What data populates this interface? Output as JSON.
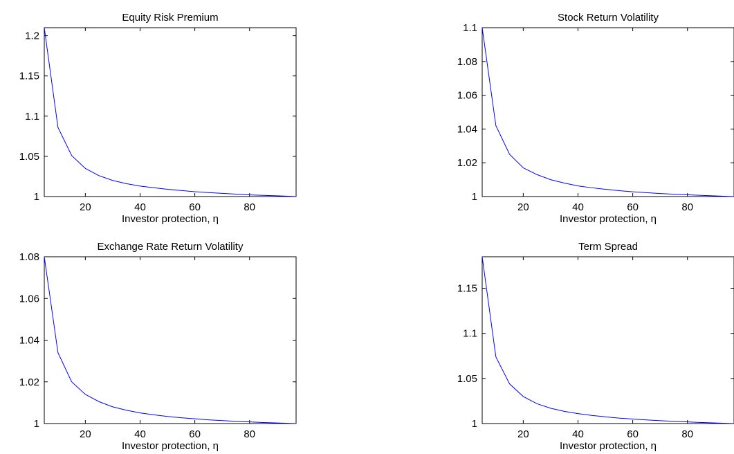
{
  "figure": {
    "background": "#ffffff",
    "line_color": "#0000ff",
    "axis_color": "#000000"
  },
  "chart_data": [
    {
      "type": "line",
      "title": "Equity Risk Premium",
      "xlabel": "Investor protection, η",
      "ylabel": "",
      "xlim": [
        5,
        97
      ],
      "ylim": [
        1,
        1.21
      ],
      "xticks": [
        20,
        40,
        60,
        80
      ],
      "yticks": [
        1,
        1.05,
        1.1,
        1.15,
        1.2
      ],
      "ytick_labels": [
        "1",
        "1.05",
        "1.1",
        "1.15",
        "1.2"
      ],
      "grid": false,
      "series": [
        {
          "x": [
            5,
            10,
            15,
            20,
            25,
            30,
            35,
            40,
            45,
            50,
            55,
            60,
            65,
            70,
            75,
            80,
            85,
            90,
            95,
            97
          ],
          "y": [
            1.21,
            1.086,
            1.051,
            1.035,
            1.026,
            1.02,
            1.016,
            1.013,
            1.011,
            1.009,
            1.0075,
            1.006,
            1.005,
            1.004,
            1.003,
            1.002,
            1.0015,
            1.001,
            1.0003,
            1.0
          ]
        }
      ]
    },
    {
      "type": "line",
      "title": "Stock Return Volatility",
      "xlabel": "Investor protection, η",
      "ylabel": "",
      "xlim": [
        5,
        97
      ],
      "ylim": [
        1,
        1.1
      ],
      "xticks": [
        20,
        40,
        60,
        80
      ],
      "yticks": [
        1,
        1.02,
        1.04,
        1.06,
        1.08,
        1.1
      ],
      "ytick_labels": [
        "1",
        "1.02",
        "1.04",
        "1.06",
        "1.08",
        "1.1"
      ],
      "grid": false,
      "series": [
        {
          "x": [
            5,
            10,
            15,
            20,
            25,
            30,
            35,
            40,
            45,
            50,
            55,
            60,
            65,
            70,
            75,
            80,
            85,
            90,
            95,
            97
          ],
          "y": [
            1.1,
            1.042,
            1.025,
            1.017,
            1.013,
            1.01,
            1.008,
            1.0063,
            1.0052,
            1.0043,
            1.0035,
            1.0028,
            1.0023,
            1.0018,
            1.0014,
            1.001,
            1.0007,
            1.0004,
            1.0001,
            1.0
          ]
        }
      ]
    },
    {
      "type": "line",
      "title": "Exchange Rate Return Volatility",
      "xlabel": "Investor protection, η",
      "ylabel": "",
      "xlim": [
        5,
        97
      ],
      "ylim": [
        1,
        1.08
      ],
      "xticks": [
        20,
        40,
        60,
        80
      ],
      "yticks": [
        1,
        1.02,
        1.04,
        1.06,
        1.08
      ],
      "ytick_labels": [
        "1",
        "1.02",
        "1.04",
        "1.06",
        "1.08"
      ],
      "grid": false,
      "series": [
        {
          "x": [
            5,
            10,
            15,
            20,
            25,
            30,
            35,
            40,
            45,
            50,
            55,
            60,
            65,
            70,
            75,
            80,
            85,
            90,
            95,
            97
          ],
          "y": [
            1.08,
            1.034,
            1.02,
            1.014,
            1.0105,
            1.008,
            1.0064,
            1.0051,
            1.0042,
            1.0034,
            1.0028,
            1.0023,
            1.0018,
            1.0014,
            1.0011,
            1.0008,
            1.0005,
            1.0003,
            1.0001,
            1.0
          ]
        }
      ]
    },
    {
      "type": "line",
      "title": "Term Spread",
      "xlabel": "Investor protection, η",
      "ylabel": "",
      "xlim": [
        5,
        97
      ],
      "ylim": [
        1,
        1.185
      ],
      "xticks": [
        20,
        40,
        60,
        80
      ],
      "yticks": [
        1,
        1.05,
        1.1,
        1.15
      ],
      "ytick_labels": [
        "1",
        "1.05",
        "1.1",
        "1.15"
      ],
      "grid": false,
      "series": [
        {
          "x": [
            5,
            10,
            15,
            20,
            25,
            30,
            35,
            40,
            45,
            50,
            55,
            60,
            65,
            70,
            75,
            80,
            85,
            90,
            95,
            97
          ],
          "y": [
            1.185,
            1.074,
            1.044,
            1.03,
            1.022,
            1.017,
            1.0135,
            1.011,
            1.009,
            1.0075,
            1.006,
            1.005,
            1.004,
            1.0032,
            1.0025,
            1.0018,
            1.0012,
            1.0007,
            1.0002,
            1.0
          ]
        }
      ]
    }
  ]
}
